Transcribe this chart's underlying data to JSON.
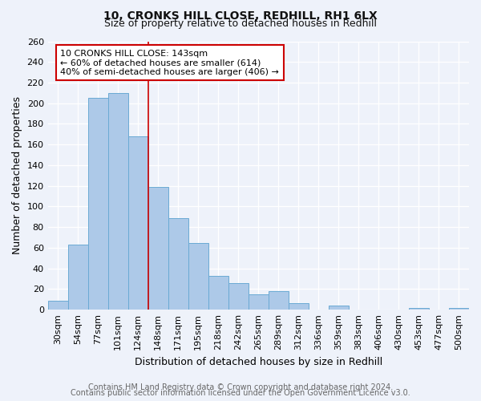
{
  "title": "10, CRONKS HILL CLOSE, REDHILL, RH1 6LX",
  "subtitle": "Size of property relative to detached houses in Redhill",
  "xlabel": "Distribution of detached houses by size in Redhill",
  "ylabel": "Number of detached properties",
  "bar_labels": [
    "30sqm",
    "54sqm",
    "77sqm",
    "101sqm",
    "124sqm",
    "148sqm",
    "171sqm",
    "195sqm",
    "218sqm",
    "242sqm",
    "265sqm",
    "289sqm",
    "312sqm",
    "336sqm",
    "359sqm",
    "383sqm",
    "406sqm",
    "430sqm",
    "453sqm",
    "477sqm",
    "500sqm"
  ],
  "bar_values": [
    9,
    63,
    205,
    210,
    168,
    119,
    89,
    65,
    33,
    26,
    15,
    18,
    6,
    0,
    4,
    0,
    0,
    0,
    2,
    0,
    2
  ],
  "bar_color": "#adc9e8",
  "bar_edge_color": "#6aaad4",
  "vline_x_index": 4.5,
  "vline_color": "#cc0000",
  "annotation_title": "10 CRONKS HILL CLOSE: 143sqm",
  "annotation_line1": "← 60% of detached houses are smaller (614)",
  "annotation_line2": "40% of semi-detached houses are larger (406) →",
  "annotation_box_color": "#ffffff",
  "annotation_box_edge": "#cc0000",
  "ylim": [
    0,
    260
  ],
  "yticks": [
    0,
    20,
    40,
    60,
    80,
    100,
    120,
    140,
    160,
    180,
    200,
    220,
    240,
    260
  ],
  "footer1": "Contains HM Land Registry data © Crown copyright and database right 2024.",
  "footer2": "Contains public sector information licensed under the Open Government Licence v3.0.",
  "bg_color": "#eef2fa",
  "plot_bg_color": "#eef2fa",
  "title_fontsize": 10,
  "subtitle_fontsize": 9,
  "axis_label_fontsize": 9,
  "tick_fontsize": 8,
  "annotation_fontsize": 8,
  "footer_fontsize": 7,
  "grid_color": "#ffffff"
}
